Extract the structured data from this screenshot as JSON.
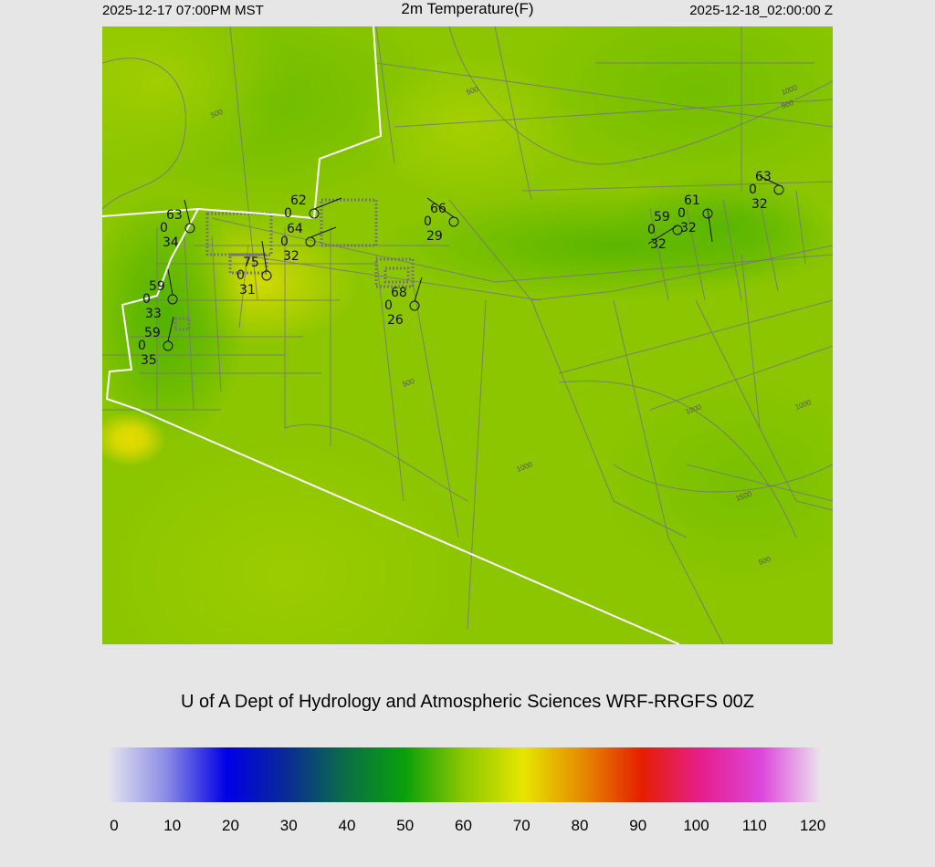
{
  "header": {
    "local_time": "2025-12-17 07:00PM MST",
    "title": "2m Temperature(F)",
    "utc_time": "2025-12-18_02:00:00 Z"
  },
  "map": {
    "contour_labels": [
      "500",
      "500",
      "1000",
      "500",
      "500",
      "1000",
      "1000",
      "1000",
      "1500",
      "500"
    ],
    "stations": [
      {
        "temp": "63",
        "wind": "0",
        "dew": "34"
      },
      {
        "temp": "62",
        "wind": "0",
        "dew": ""
      },
      {
        "temp": "64",
        "wind": "0",
        "dew": "32"
      },
      {
        "temp": "75",
        "wind": "0",
        "dew": "31"
      },
      {
        "temp": "59",
        "wind": "0",
        "dew": "33"
      },
      {
        "temp": "59",
        "wind": "0",
        "dew": "35"
      },
      {
        "temp": "66",
        "wind": "0",
        "dew": "29"
      },
      {
        "temp": "68",
        "wind": "0",
        "dew": "26"
      },
      {
        "temp": "59",
        "wind": "0",
        "dew": "32"
      },
      {
        "temp": "61",
        "wind": "0",
        "dew": "32"
      },
      {
        "temp": "63",
        "wind": "0",
        "dew": "32"
      }
    ]
  },
  "credit": "U of A Dept of Hydrology and Atmospheric Sciences WRF-RRGFS 00Z",
  "colorbar": {
    "min": 0,
    "max": 120,
    "ticks": [
      "0",
      "10",
      "20",
      "30",
      "40",
      "50",
      "60",
      "70",
      "80",
      "90",
      "100",
      "110",
      "120"
    ],
    "colors": [
      "#e6e6ee",
      "#8a8ae6",
      "#0000e6",
      "#0a2a96",
      "#0a6e46",
      "#0aa00a",
      "#8cc800",
      "#e6e600",
      "#e68a00",
      "#e61e00",
      "#e61e8c",
      "#dc46dc",
      "#ece0ec"
    ]
  }
}
